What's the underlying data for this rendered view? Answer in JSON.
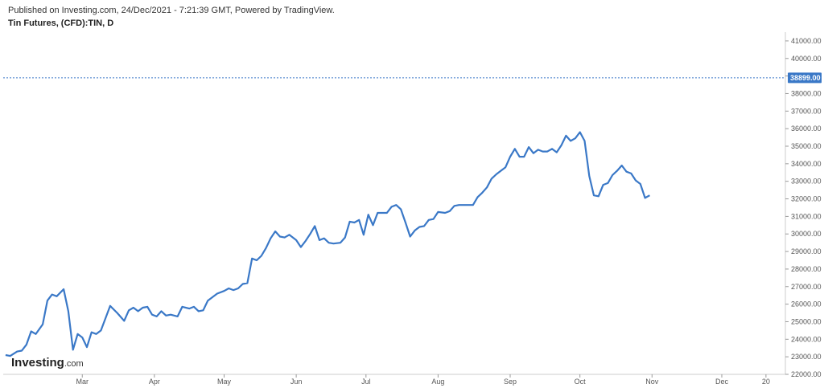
{
  "header": {
    "published": "Published on Investing.com, 24/Dec/2021 - 7:21:39 GMT, Powered by TradingView.",
    "title": "Tin Futures, (CFD):TIN, D"
  },
  "branding": {
    "logo_main": "Investing",
    "logo_suffix": ".com"
  },
  "colors": {
    "line": "#3a78c7",
    "last_price_bg": "#3a78c7",
    "axis": "#cccccc"
  },
  "chart_data": {
    "type": "line",
    "title": "Tin Futures, (CFD):TIN, D",
    "ylim": [
      22000,
      41500
    ],
    "yticks": [
      22000,
      23000,
      24000,
      25000,
      26000,
      27000,
      28000,
      29000,
      30000,
      31000,
      32000,
      33000,
      34000,
      35000,
      36000,
      37000,
      38000,
      39000,
      40000,
      41000
    ],
    "ytick_labels": [
      "22000.00",
      "23000.00",
      "24000.00",
      "25000.00",
      "26000.00",
      "27000.00",
      "28000.00",
      "29000.00",
      "30000.00",
      "31000.00",
      "32000.00",
      "33000.00",
      "34000.00",
      "35000.00",
      "36000.00",
      "37000.00",
      "38000.00",
      "39000.00",
      "40000.00",
      "41000.00"
    ],
    "xlim": [
      "2021-01-26",
      "2021-12-28"
    ],
    "xticks": [
      {
        "date": "2021-03-01",
        "label": "Mar"
      },
      {
        "date": "2021-04-01",
        "label": "Apr"
      },
      {
        "date": "2021-05-01",
        "label": "May"
      },
      {
        "date": "2021-06-01",
        "label": "Jun"
      },
      {
        "date": "2021-07-01",
        "label": "Jul"
      },
      {
        "date": "2021-08-01",
        "label": "Aug"
      },
      {
        "date": "2021-09-01",
        "label": "Sep"
      },
      {
        "date": "2021-10-01",
        "label": "Oct"
      },
      {
        "date": "2021-11-01",
        "label": "Nov"
      },
      {
        "date": "2021-12-01",
        "label": "Dec"
      },
      {
        "date": "2021-12-20",
        "label": "20"
      }
    ],
    "last_price": 38899.0,
    "last_price_label": "38899.00",
    "grid": false,
    "series": [
      {
        "points": [
          [
            "2021-01-27",
            23100
          ],
          [
            "2021-01-29",
            23050
          ],
          [
            "2021-02-01",
            23300
          ],
          [
            "2021-02-03",
            23350
          ],
          [
            "2021-02-05",
            23700
          ],
          [
            "2021-02-07",
            24450
          ],
          [
            "2021-02-09",
            24300
          ],
          [
            "2021-02-12",
            24850
          ],
          [
            "2021-02-14",
            26200
          ],
          [
            "2021-02-16",
            26550
          ],
          [
            "2021-02-18",
            26450
          ],
          [
            "2021-02-21",
            26850
          ],
          [
            "2021-02-23",
            25600
          ],
          [
            "2021-02-25",
            23400
          ],
          [
            "2021-02-27",
            24300
          ],
          [
            "2021-03-01",
            24100
          ],
          [
            "2021-03-03",
            23550
          ],
          [
            "2021-03-05",
            24400
          ],
          [
            "2021-03-07",
            24300
          ],
          [
            "2021-03-09",
            24500
          ],
          [
            "2021-03-13",
            25900
          ],
          [
            "2021-03-16",
            25500
          ],
          [
            "2021-03-19",
            25050
          ],
          [
            "2021-03-21",
            25650
          ],
          [
            "2021-03-23",
            25800
          ],
          [
            "2021-03-25",
            25600
          ],
          [
            "2021-03-27",
            25800
          ],
          [
            "2021-03-29",
            25850
          ],
          [
            "2021-03-31",
            25400
          ],
          [
            "2021-04-02",
            25300
          ],
          [
            "2021-04-04",
            25600
          ],
          [
            "2021-04-06",
            25350
          ],
          [
            "2021-04-08",
            25400
          ],
          [
            "2021-04-11",
            25300
          ],
          [
            "2021-04-13",
            25850
          ],
          [
            "2021-04-16",
            25750
          ],
          [
            "2021-04-18",
            25850
          ],
          [
            "2021-04-20",
            25600
          ],
          [
            "2021-04-22",
            25650
          ],
          [
            "2021-04-24",
            26200
          ],
          [
            "2021-04-26",
            26400
          ],
          [
            "2021-04-28",
            26600
          ],
          [
            "2021-05-01",
            26750
          ],
          [
            "2021-05-03",
            26900
          ],
          [
            "2021-05-05",
            26800
          ],
          [
            "2021-05-07",
            26900
          ],
          [
            "2021-05-09",
            27150
          ],
          [
            "2021-05-11",
            27200
          ],
          [
            "2021-05-13",
            28600
          ],
          [
            "2021-05-15",
            28500
          ],
          [
            "2021-05-17",
            28750
          ],
          [
            "2021-05-19",
            29200
          ],
          [
            "2021-05-21",
            29750
          ],
          [
            "2021-05-23",
            30150
          ],
          [
            "2021-05-25",
            29850
          ],
          [
            "2021-05-27",
            29800
          ],
          [
            "2021-05-29",
            29950
          ],
          [
            "2021-06-01",
            29650
          ],
          [
            "2021-06-03",
            29250
          ],
          [
            "2021-06-05",
            29600
          ],
          [
            "2021-06-07",
            30000
          ],
          [
            "2021-06-09",
            30450
          ],
          [
            "2021-06-11",
            29650
          ],
          [
            "2021-06-13",
            29750
          ],
          [
            "2021-06-15",
            29500
          ],
          [
            "2021-06-17",
            29450
          ],
          [
            "2021-06-20",
            29500
          ],
          [
            "2021-06-22",
            29800
          ],
          [
            "2021-06-24",
            30700
          ],
          [
            "2021-06-26",
            30650
          ],
          [
            "2021-06-28",
            30800
          ],
          [
            "2021-06-30",
            29950
          ],
          [
            "2021-07-02",
            31100
          ],
          [
            "2021-07-04",
            30500
          ],
          [
            "2021-07-06",
            31200
          ],
          [
            "2021-07-08",
            31200
          ],
          [
            "2021-07-10",
            31200
          ],
          [
            "2021-07-12",
            31550
          ],
          [
            "2021-07-14",
            31650
          ],
          [
            "2021-07-16",
            31400
          ],
          [
            "2021-07-18",
            30650
          ],
          [
            "2021-07-20",
            29850
          ],
          [
            "2021-07-22",
            30200
          ],
          [
            "2021-07-24",
            30400
          ],
          [
            "2021-07-26",
            30450
          ],
          [
            "2021-07-28",
            30800
          ],
          [
            "2021-07-30",
            30850
          ],
          [
            "2021-08-01",
            31250
          ],
          [
            "2021-08-04",
            31200
          ],
          [
            "2021-08-06",
            31300
          ],
          [
            "2021-08-08",
            31600
          ],
          [
            "2021-08-10",
            31650
          ],
          [
            "2021-08-13",
            31650
          ],
          [
            "2021-08-16",
            31650
          ],
          [
            "2021-08-18",
            32100
          ],
          [
            "2021-08-20",
            32350
          ],
          [
            "2021-08-22",
            32650
          ],
          [
            "2021-08-24",
            33150
          ],
          [
            "2021-08-26",
            33400
          ],
          [
            "2021-08-28",
            33600
          ],
          [
            "2021-08-30",
            33800
          ],
          [
            "2021-09-01",
            34400
          ],
          [
            "2021-09-03",
            34850
          ],
          [
            "2021-09-05",
            34400
          ],
          [
            "2021-09-07",
            34400
          ],
          [
            "2021-09-09",
            34950
          ],
          [
            "2021-09-11",
            34600
          ],
          [
            "2021-09-13",
            34800
          ],
          [
            "2021-09-15",
            34700
          ],
          [
            "2021-09-17",
            34700
          ],
          [
            "2021-09-19",
            34850
          ],
          [
            "2021-09-21",
            34650
          ],
          [
            "2021-09-23",
            35050
          ],
          [
            "2021-09-25",
            35600
          ],
          [
            "2021-09-27",
            35300
          ],
          [
            "2021-09-29",
            35450
          ],
          [
            "2021-10-01",
            35800
          ],
          [
            "2021-10-03",
            35300
          ],
          [
            "2021-10-05",
            33300
          ],
          [
            "2021-10-07",
            32200
          ],
          [
            "2021-10-09",
            32150
          ],
          [
            "2021-10-11",
            32800
          ],
          [
            "2021-10-13",
            32900
          ],
          [
            "2021-10-15",
            33350
          ],
          [
            "2021-10-17",
            33600
          ],
          [
            "2021-10-19",
            33900
          ],
          [
            "2021-10-21",
            33550
          ],
          [
            "2021-10-23",
            33450
          ],
          [
            "2021-10-25",
            33050
          ],
          [
            "2021-10-27",
            32850
          ],
          [
            "2021-10-29",
            32050
          ],
          [
            "2021-10-31",
            32200
          ]
        ]
      }
    ]
  }
}
